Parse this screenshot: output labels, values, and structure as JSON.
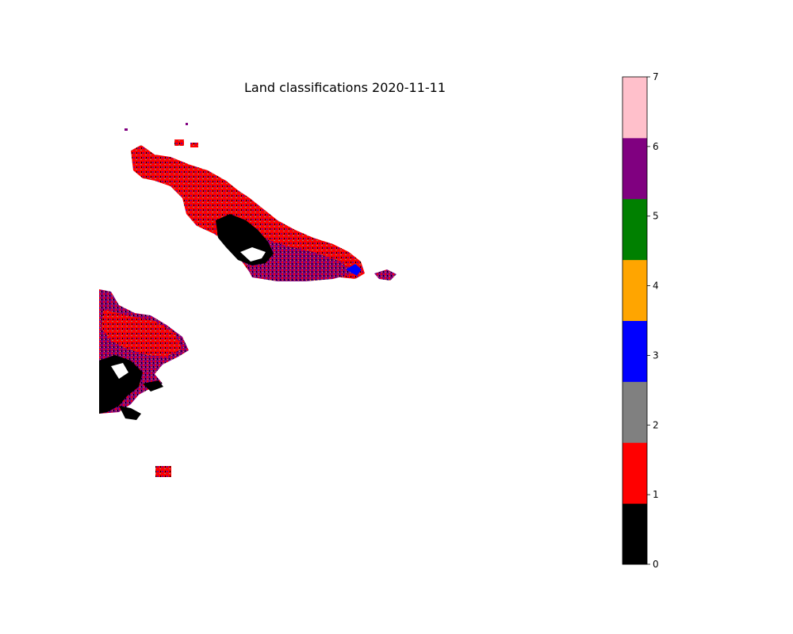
{
  "chart_data": {
    "type": "heatmap",
    "title": "Land classifications 2020-11-11",
    "xlabel": "",
    "ylabel": "",
    "axes_visible": false,
    "colorbar": {
      "position": "right",
      "range": [
        0,
        7
      ],
      "classes": [
        {
          "value": 0,
          "color": "#000000"
        },
        {
          "value": 1,
          "color": "#ff0000"
        },
        {
          "value": 2,
          "color": "#808080"
        },
        {
          "value": 3,
          "color": "#0000ff"
        },
        {
          "value": 4,
          "color": "#ffa500"
        },
        {
          "value": 5,
          "color": "#008000"
        },
        {
          "value": 6,
          "color": "#800080"
        },
        {
          "value": 7,
          "color": "#ffc0cb"
        }
      ],
      "ticks": [
        0,
        1,
        2,
        3,
        4,
        5,
        6,
        7
      ]
    },
    "dominant_classes": [
      1,
      0,
      6,
      2,
      3
    ]
  }
}
